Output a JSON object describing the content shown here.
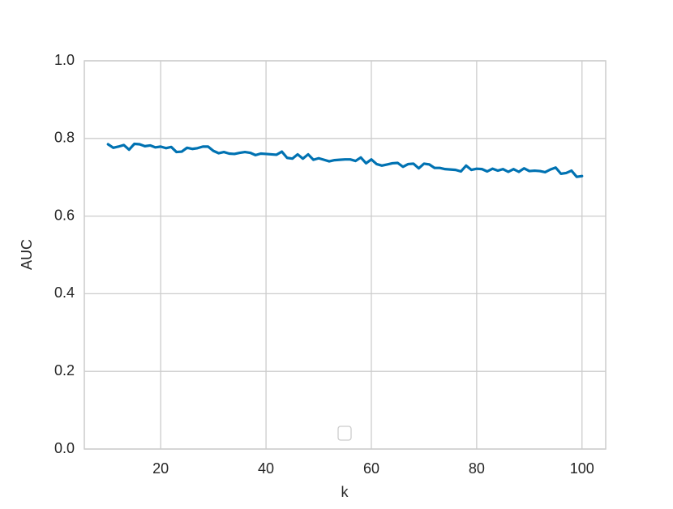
{
  "chart_data": {
    "type": "line",
    "xlabel": "k",
    "ylabel": "AUC",
    "x": [
      10,
      11,
      12,
      13,
      14,
      15,
      16,
      17,
      18,
      19,
      20,
      21,
      22,
      23,
      24,
      25,
      26,
      27,
      28,
      29,
      30,
      31,
      32,
      33,
      34,
      35,
      36,
      37,
      38,
      39,
      40,
      41,
      42,
      43,
      44,
      45,
      46,
      47,
      48,
      49,
      50,
      51,
      52,
      53,
      54,
      55,
      56,
      57,
      58,
      59,
      60,
      61,
      62,
      63,
      64,
      65,
      66,
      67,
      68,
      69,
      70,
      71,
      72,
      73,
      74,
      75,
      76,
      77,
      78,
      79,
      80,
      81,
      82,
      83,
      84,
      85,
      86,
      87,
      88,
      89,
      90,
      91,
      92,
      93,
      94,
      95,
      96,
      97,
      98,
      99,
      100
    ],
    "series": [
      {
        "color": "#0072b2",
        "values": [
          0.785,
          0.776,
          0.779,
          0.783,
          0.771,
          0.786,
          0.785,
          0.78,
          0.782,
          0.777,
          0.779,
          0.775,
          0.778,
          0.765,
          0.766,
          0.776,
          0.773,
          0.775,
          0.779,
          0.779,
          0.768,
          0.762,
          0.765,
          0.761,
          0.76,
          0.763,
          0.765,
          0.763,
          0.757,
          0.761,
          0.76,
          0.759,
          0.758,
          0.766,
          0.75,
          0.748,
          0.759,
          0.748,
          0.759,
          0.745,
          0.749,
          0.745,
          0.741,
          0.744,
          0.745,
          0.746,
          0.746,
          0.742,
          0.751,
          0.736,
          0.746,
          0.734,
          0.73,
          0.733,
          0.736,
          0.737,
          0.727,
          0.734,
          0.735,
          0.723,
          0.735,
          0.733,
          0.724,
          0.724,
          0.721,
          0.72,
          0.719,
          0.715,
          0.73,
          0.719,
          0.722,
          0.721,
          0.715,
          0.722,
          0.717,
          0.721,
          0.714,
          0.721,
          0.714,
          0.723,
          0.716,
          0.717,
          0.716,
          0.713,
          0.72,
          0.725,
          0.709,
          0.711,
          0.717,
          0.701,
          0.703
        ]
      }
    ],
    "xlim": [
      5.5,
      104.5
    ],
    "xticks": [
      20,
      40,
      60,
      80,
      100
    ],
    "ylim": [
      0,
      1
    ],
    "yticks": [
      {
        "value": 0,
        "label": "0.0"
      },
      0.2,
      0.4,
      0.6,
      0.8,
      {
        "value": 1,
        "label": "1.0"
      }
    ],
    "grid": true
  }
}
